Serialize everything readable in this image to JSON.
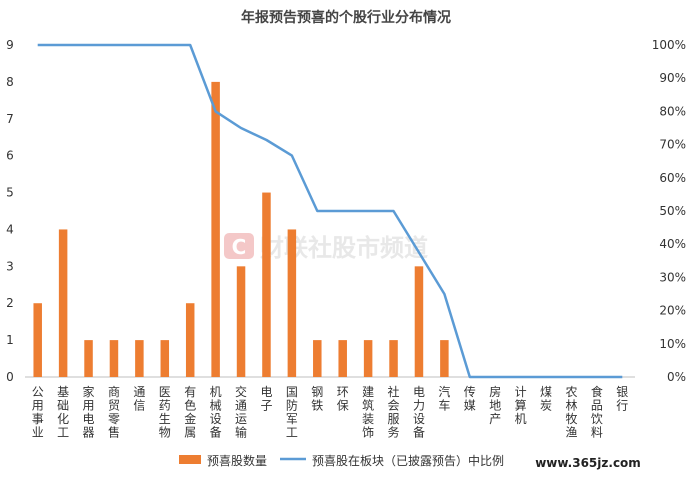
{
  "chart_data": {
    "type": "bar+line",
    "title": "年报预告预喜的个股行业分布情况",
    "categories": [
      "公用事业",
      "基础化工",
      "家用电器",
      "商贸零售",
      "通信",
      "医药生物",
      "有色金属",
      "机械设备",
      "交通运输",
      "电子",
      "国防军工",
      "钢铁",
      "环保",
      "建筑装饰",
      "社会服务",
      "电力设备",
      "汽车",
      "传媒",
      "房地产",
      "计算机",
      "煤炭",
      "农林牧渔",
      "食品饮料",
      "银行"
    ],
    "series": [
      {
        "name": "预喜股数量",
        "type": "bar",
        "axis": "left",
        "color": "#ED7D31",
        "values": [
          2,
          4,
          1,
          1,
          1,
          1,
          2,
          8,
          3,
          5,
          4,
          1,
          1,
          1,
          1,
          3,
          1,
          0,
          0,
          0,
          0,
          0,
          0,
          0
        ]
      },
      {
        "name": "预喜股在板块（已披露预告）中比例",
        "type": "line",
        "axis": "right",
        "color": "#5B9BD5",
        "values": [
          100,
          100,
          100,
          100,
          100,
          100,
          100,
          80,
          75,
          71.4,
          66.7,
          50,
          50,
          50,
          50,
          37.5,
          25,
          0,
          0,
          0,
          0,
          0,
          0,
          0
        ]
      }
    ],
    "y_left": {
      "min": 0,
      "max": 9,
      "ticks": [
        "0",
        "1",
        "2",
        "3",
        "4",
        "5",
        "6",
        "7",
        "8",
        "9"
      ]
    },
    "y_right": {
      "min": 0,
      "max": 100,
      "ticks": [
        "0%",
        "10%",
        "20%",
        "30%",
        "40%",
        "50%",
        "60%",
        "70%",
        "80%",
        "90%",
        "100%"
      ]
    },
    "legend_position": "bottom",
    "grid": false
  },
  "watermark": {
    "text": "财联社股市频道",
    "logo": "C"
  },
  "site_label": "www.365jz.com"
}
